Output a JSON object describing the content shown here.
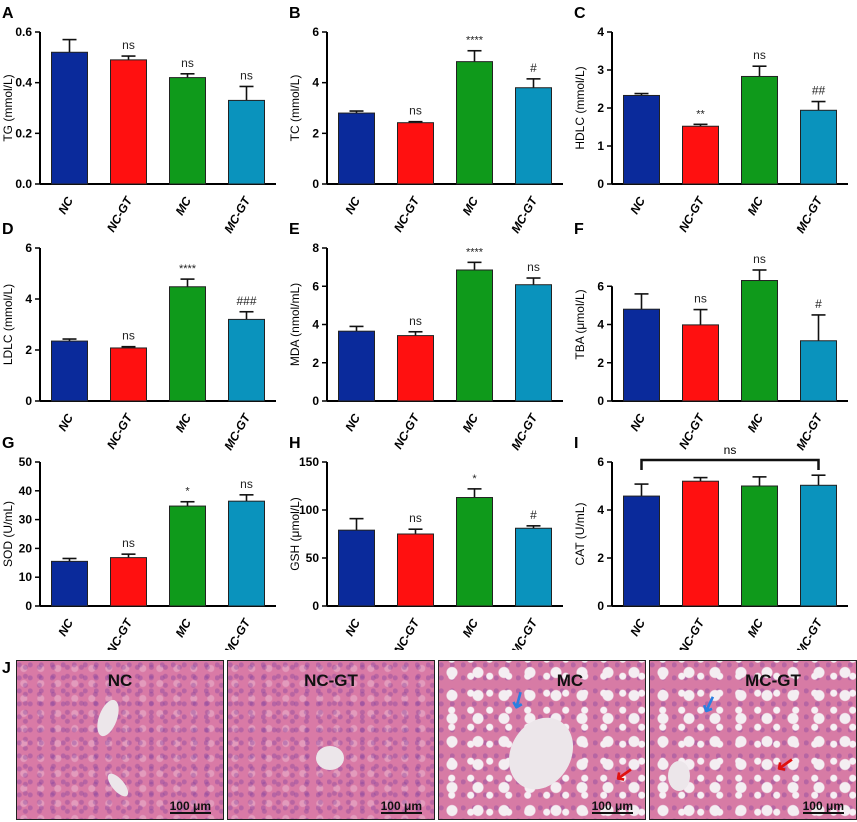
{
  "colors": {
    "NC": "#0a2a9b",
    "NC-GT": "#ff1010",
    "MC": "#0f9a1b",
    "MC-GT": "#0a93bd"
  },
  "chart_data": [
    {
      "panel": "A",
      "type": "bar",
      "ylabel": "TG (mmol/L)",
      "categories": [
        "NC",
        "NC-GT",
        "MC",
        "MC-GT"
      ],
      "values": [
        0.52,
        0.49,
        0.42,
        0.33
      ],
      "errors": [
        0.05,
        0.015,
        0.015,
        0.055
      ],
      "sig": [
        "",
        "ns",
        "ns",
        "ns"
      ],
      "ylim": [
        0,
        0.6
      ],
      "ticks": [
        "0.0",
        "0.2",
        "0.4",
        "0.6"
      ]
    },
    {
      "panel": "B",
      "type": "bar",
      "ylabel": "TC (mmol/L)",
      "categories": [
        "NC",
        "NC-GT",
        "MC",
        "MC-GT"
      ],
      "values": [
        2.8,
        2.42,
        4.83,
        3.8
      ],
      "errors": [
        0.08,
        0.04,
        0.43,
        0.35
      ],
      "sig": [
        "",
        "ns",
        "****",
        "#"
      ],
      "ylim": [
        0,
        6
      ],
      "ticks": [
        "0",
        "2",
        "4",
        "6"
      ]
    },
    {
      "panel": "C",
      "type": "bar",
      "ylabel": "HDLC (mmol/L)",
      "categories": [
        "NC",
        "NC-GT",
        "MC",
        "MC-GT"
      ],
      "values": [
        2.33,
        1.52,
        2.83,
        1.94
      ],
      "errors": [
        0.05,
        0.05,
        0.27,
        0.23
      ],
      "sig": [
        "",
        "**",
        "ns",
        "##"
      ],
      "ylim": [
        0,
        4
      ],
      "ticks": [
        "0",
        "1",
        "2",
        "3",
        "4"
      ]
    },
    {
      "panel": "D",
      "type": "bar",
      "ylabel": "LDLC (mmol/L)",
      "categories": [
        "NC",
        "NC-GT",
        "MC",
        "MC-GT"
      ],
      "values": [
        2.35,
        2.08,
        4.48,
        3.2
      ],
      "errors": [
        0.08,
        0.05,
        0.3,
        0.3
      ],
      "sig": [
        "",
        "ns",
        "****",
        "###"
      ],
      "ylim": [
        0,
        6
      ],
      "ticks": [
        "0",
        "2",
        "4",
        "6"
      ]
    },
    {
      "panel": "E",
      "type": "bar",
      "ylabel": "MDA (nmol/mL)",
      "categories": [
        "NC",
        "NC-GT",
        "MC",
        "MC-GT"
      ],
      "values": [
        3.65,
        3.42,
        6.85,
        6.08
      ],
      "errors": [
        0.25,
        0.2,
        0.4,
        0.35
      ],
      "sig": [
        "",
        "ns",
        "****",
        "ns"
      ],
      "ylim": [
        0,
        8
      ],
      "ticks": [
        "0",
        "2",
        "4",
        "6",
        "8"
      ]
    },
    {
      "panel": "F",
      "type": "bar",
      "ylabel": "TBA (μmol/L)",
      "categories": [
        "NC",
        "NC-GT",
        "MC",
        "MC-GT"
      ],
      "values": [
        4.8,
        3.98,
        6.3,
        3.15
      ],
      "errors": [
        0.8,
        0.8,
        0.55,
        1.35
      ],
      "sig": [
        "",
        "ns",
        "ns",
        "#"
      ],
      "ylim": [
        0,
        8
      ],
      "ticks": [
        "0",
        "2",
        "4",
        "6"
      ]
    },
    {
      "panel": "G",
      "type": "bar",
      "ylabel": "SOD (U/mL)",
      "categories": [
        "NC",
        "NC-GT",
        "MC",
        "MC-GT"
      ],
      "values": [
        15.5,
        16.8,
        34.7,
        36.4
      ],
      "errors": [
        1,
        1.2,
        1.5,
        2.2
      ],
      "sig": [
        "",
        "ns",
        "*",
        "ns"
      ],
      "ylim": [
        0,
        50
      ],
      "ticks": [
        "0",
        "10",
        "20",
        "30",
        "40",
        "50"
      ]
    },
    {
      "panel": "H",
      "type": "bar",
      "ylabel": "GSH (μmol/L)",
      "categories": [
        "NC",
        "NC-GT",
        "MC",
        "MC-GT"
      ],
      "values": [
        79,
        75,
        113,
        81
      ],
      "errors": [
        12,
        5,
        9,
        2.5
      ],
      "sig": [
        "",
        "ns",
        "*",
        "#"
      ],
      "ylim": [
        0,
        150
      ],
      "ticks": [
        "0",
        "50",
        "100",
        "150"
      ]
    },
    {
      "panel": "I",
      "type": "bar",
      "ylabel": "CAT (U/mL)",
      "categories": [
        "NC",
        "NC-GT",
        "MC",
        "MC-GT"
      ],
      "values": [
        4.58,
        5.2,
        5.0,
        5.03
      ],
      "errors": [
        0.5,
        0.15,
        0.38,
        0.42
      ],
      "sig": [
        "",
        "",
        "",
        ""
      ],
      "bracket": "ns",
      "ylim": [
        0,
        6
      ],
      "ticks": [
        "0",
        "2",
        "4",
        "6"
      ]
    }
  ],
  "histology": {
    "panel": "J",
    "images": [
      {
        "label": "NC",
        "scale": "100 μm"
      },
      {
        "label": "NC-GT",
        "scale": "100 μm"
      },
      {
        "label": "MC",
        "scale": "100 μm"
      },
      {
        "label": "MC-GT",
        "scale": "100 μm"
      }
    ]
  }
}
